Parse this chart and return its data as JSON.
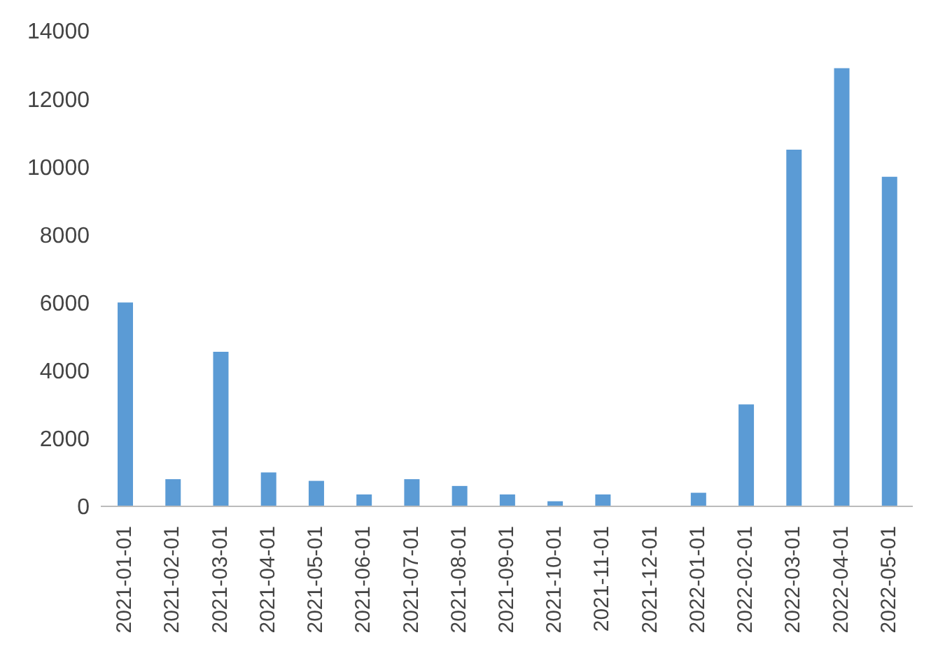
{
  "chart_data": {
    "type": "bar",
    "categories": [
      "2021-01-01",
      "2021-02-01",
      "2021-03-01",
      "2021-04-01",
      "2021-05-01",
      "2021-06-01",
      "2021-07-01",
      "2021-08-01",
      "2021-09-01",
      "2021-10-01",
      "2021-11-01",
      "2021-12-01",
      "2022-01-01",
      "2022-02-01",
      "2022-03-01",
      "2022-04-01",
      "2022-05-01"
    ],
    "values": [
      6000,
      800,
      4550,
      1000,
      750,
      350,
      800,
      600,
      350,
      150,
      350,
      0,
      400,
      3000,
      10500,
      12900,
      9700
    ],
    "color": "#5b9bd5",
    "ylim": [
      0,
      14000
    ],
    "yticks": [
      0,
      2000,
      4000,
      6000,
      8000,
      10000,
      12000,
      14000
    ],
    "grid": false
  }
}
